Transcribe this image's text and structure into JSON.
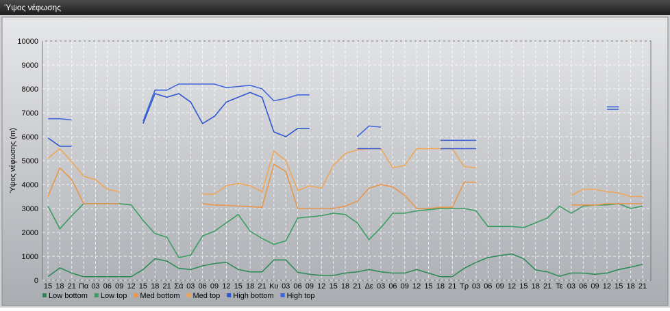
{
  "window_title": "Ύψος νέφωσης",
  "chart_data": {
    "type": "line",
    "y_label": "Ύψος νέφωσης (m)",
    "categories": [
      "15",
      "18",
      "21",
      "Πα",
      "03",
      "06",
      "09",
      "12",
      "15",
      "18",
      "21",
      "Σά",
      "03",
      "06",
      "09",
      "12",
      "15",
      "18",
      "21",
      "Κυ",
      "03",
      "06",
      "09",
      "12",
      "15",
      "18",
      "21",
      "Δε",
      "03",
      "06",
      "09",
      "12",
      "15",
      "18",
      "21",
      "Τρ",
      "03",
      "06",
      "09",
      "12",
      "15",
      "18",
      "21",
      "Τε",
      "03",
      "06",
      "09",
      "12",
      "15",
      "18",
      "21"
    ],
    "ylim": [
      0,
      10000
    ],
    "yticks": [
      0,
      1000,
      2000,
      3000,
      4000,
      5000,
      6000,
      7000,
      8000,
      9000,
      10000
    ],
    "grid": true,
    "series": [
      {
        "name": "Low bottom",
        "color": "#2e8b57",
        "values": [
          150,
          520,
          300,
          150,
          150,
          150,
          150,
          150,
          450,
          900,
          800,
          500,
          450,
          600,
          700,
          750,
          450,
          350,
          350,
          850,
          850,
          330,
          250,
          200,
          200,
          300,
          350,
          450,
          350,
          300,
          300,
          450,
          300,
          150,
          150,
          500,
          750,
          950,
          1030,
          1100,
          900,
          430,
          350,
          170,
          300,
          300,
          250,
          300,
          450,
          550,
          670
        ]
      },
      {
        "name": "Low top",
        "color": "#3a9e62",
        "values": [
          3100,
          2150,
          2700,
          3200,
          3200,
          3200,
          3200,
          3150,
          2500,
          1950,
          1800,
          950,
          1050,
          1850,
          2050,
          2400,
          2750,
          2050,
          1750,
          1500,
          1650,
          2600,
          2650,
          2700,
          2800,
          2750,
          2400,
          1700,
          2200,
          2800,
          2800,
          2900,
          2950,
          3000,
          3000,
          3000,
          2900,
          2250,
          2250,
          2250,
          2200,
          2400,
          2600,
          3100,
          2800,
          3100,
          3150,
          3150,
          3200,
          3000,
          3100
        ]
      },
      {
        "name": "Med bottom",
        "color": "#e8964a",
        "values": [
          3500,
          4700,
          4200,
          3200,
          3200,
          3200,
          3200,
          null,
          null,
          null,
          null,
          null,
          null,
          3200,
          3150,
          3130,
          3100,
          3080,
          3050,
          4850,
          4550,
          3000,
          3000,
          3000,
          3000,
          3100,
          3300,
          3850,
          4000,
          3900,
          3550,
          3000,
          3000,
          3050,
          3050,
          4100,
          4100,
          null,
          null,
          null,
          null,
          null,
          null,
          null,
          3150,
          3150,
          3150,
          3200,
          3200,
          3200,
          3200
        ]
      },
      {
        "name": "Med top",
        "color": "#f0a657",
        "values": [
          5100,
          5500,
          4950,
          4350,
          4200,
          3800,
          3700,
          null,
          null,
          null,
          null,
          null,
          null,
          3600,
          3600,
          3950,
          4050,
          3950,
          3700,
          5400,
          5000,
          3750,
          3950,
          3850,
          4800,
          5300,
          5450,
          5500,
          5500,
          4700,
          4800,
          5500,
          5500,
          5500,
          5500,
          4750,
          4700,
          null,
          null,
          null,
          null,
          null,
          null,
          null,
          3550,
          3800,
          3800,
          3700,
          3650,
          3500,
          3500
        ]
      },
      {
        "name": "High bottom",
        "color": "#2f56d0",
        "values": [
          5950,
          5600,
          5600,
          null,
          null,
          null,
          null,
          null,
          6550,
          7800,
          7650,
          7800,
          7450,
          6550,
          6850,
          7450,
          7650,
          7850,
          7650,
          6200,
          6000,
          6350,
          6350,
          null,
          null,
          null,
          5500,
          5500,
          5500,
          null,
          null,
          null,
          null,
          5500,
          5500,
          5500,
          5500,
          null,
          null,
          null,
          null,
          null,
          null,
          null,
          null,
          null,
          null,
          7150,
          7150,
          null,
          null
        ]
      },
      {
        "name": "High top",
        "color": "#3f66dc",
        "values": [
          6750,
          6750,
          6700,
          null,
          null,
          null,
          null,
          null,
          6650,
          7950,
          7950,
          8200,
          8200,
          8200,
          8200,
          8050,
          8100,
          8150,
          8000,
          7500,
          7600,
          7750,
          7750,
          null,
          null,
          null,
          6000,
          6450,
          6400,
          null,
          null,
          null,
          null,
          5850,
          5850,
          5850,
          5850,
          null,
          null,
          null,
          null,
          null,
          null,
          null,
          null,
          null,
          null,
          7250,
          7250,
          null,
          null
        ]
      }
    ]
  }
}
